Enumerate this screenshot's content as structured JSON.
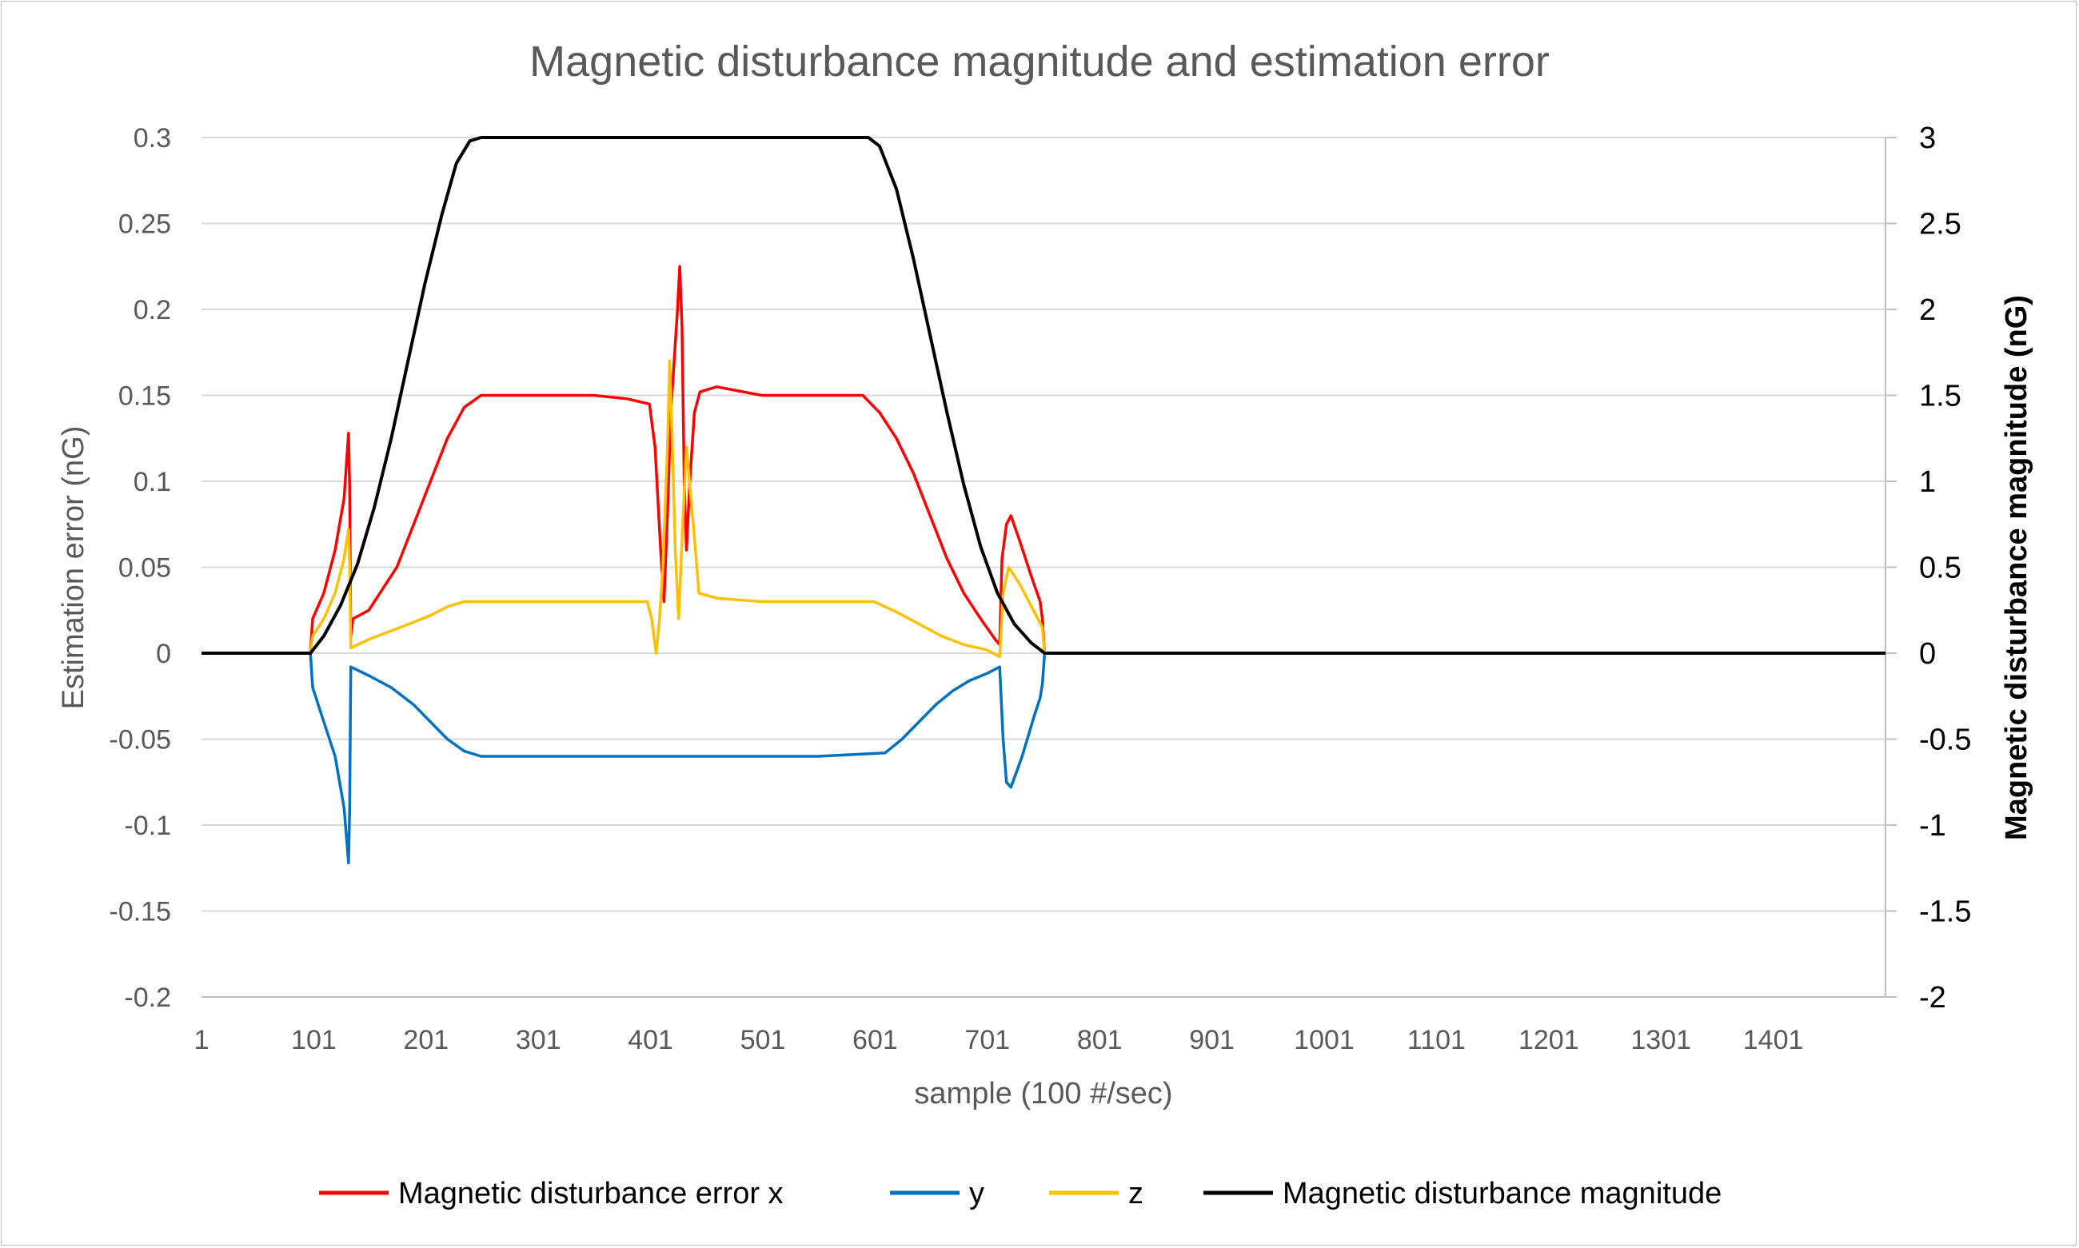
{
  "chart_data": {
    "type": "line",
    "title": "Magnetic disturbance magnitude and estimation error",
    "xlabel": "sample (100 #/sec)",
    "ylabel": "Estimation error (nG)",
    "y2label": "Magnetic disturbance magnitude (nG)",
    "xlim": [
      1,
      1501
    ],
    "ylim": [
      -0.2,
      0.3
    ],
    "y2lim": [
      -2,
      3
    ],
    "x_ticks": [
      "1",
      "101",
      "201",
      "301",
      "401",
      "501",
      "601",
      "701",
      "801",
      "901",
      "1001",
      "1101",
      "1201",
      "1301",
      "1401"
    ],
    "x_tick_values": [
      1,
      101,
      201,
      301,
      401,
      501,
      601,
      701,
      801,
      901,
      1001,
      1101,
      1201,
      1301,
      1401
    ],
    "y_ticks": [
      "0.3",
      "0.25",
      "0.2",
      "0.15",
      "0.1",
      "0.05",
      "0",
      "-0.05",
      "-0.1",
      "-0.15",
      "-0.2"
    ],
    "y_tick_values": [
      0.3,
      0.25,
      0.2,
      0.15,
      0.1,
      0.05,
      0,
      -0.05,
      -0.1,
      -0.15,
      -0.2
    ],
    "y2_ticks": [
      "3",
      "2.5",
      "2",
      "1.5",
      "1",
      "0.5",
      "0",
      "-0.5",
      "-1",
      "-1.5",
      "-2"
    ],
    "y2_tick_values": [
      3,
      2.5,
      2,
      1.5,
      1,
      0.5,
      0,
      -0.5,
      -1,
      -1.5,
      -2
    ],
    "grid": true,
    "legend_position": "bottom",
    "series": [
      {
        "name": "Magnetic disturbance error x",
        "color": "#ff0000",
        "axis": "left",
        "points": [
          [
            1,
            0
          ],
          [
            98,
            0
          ],
          [
            100,
            0.02
          ],
          [
            110,
            0.035
          ],
          [
            120,
            0.06
          ],
          [
            128,
            0.09
          ],
          [
            132,
            0.128
          ],
          [
            133,
            0.095
          ],
          [
            134,
            0.01
          ],
          [
            136,
            0.02
          ],
          [
            150,
            0.025
          ],
          [
            160,
            0.035
          ],
          [
            175,
            0.05
          ],
          [
            190,
            0.075
          ],
          [
            205,
            0.1
          ],
          [
            220,
            0.125
          ],
          [
            235,
            0.143
          ],
          [
            250,
            0.15
          ],
          [
            300,
            0.15
          ],
          [
            350,
            0.15
          ],
          [
            380,
            0.148
          ],
          [
            400,
            0.145
          ],
          [
            405,
            0.12
          ],
          [
            410,
            0.06
          ],
          [
            413,
            0.03
          ],
          [
            416,
            0.08
          ],
          [
            419,
            0.14
          ],
          [
            422,
            0.17
          ],
          [
            425,
            0.2
          ],
          [
            427,
            0.225
          ],
          [
            429,
            0.19
          ],
          [
            431,
            0.1
          ],
          [
            433,
            0.06
          ],
          [
            436,
            0.1
          ],
          [
            440,
            0.14
          ],
          [
            445,
            0.152
          ],
          [
            460,
            0.155
          ],
          [
            500,
            0.15
          ],
          [
            550,
            0.15
          ],
          [
            590,
            0.15
          ],
          [
            605,
            0.14
          ],
          [
            620,
            0.125
          ],
          [
            635,
            0.105
          ],
          [
            650,
            0.08
          ],
          [
            665,
            0.055
          ],
          [
            680,
            0.035
          ],
          [
            695,
            0.02
          ],
          [
            708,
            0.008
          ],
          [
            712,
            0.005
          ],
          [
            714,
            0.055
          ],
          [
            718,
            0.075
          ],
          [
            722,
            0.08
          ],
          [
            730,
            0.065
          ],
          [
            740,
            0.045
          ],
          [
            748,
            0.03
          ],
          [
            750,
            0.02
          ],
          [
            752,
            0
          ],
          [
            1501,
            0
          ]
        ]
      },
      {
        "name": "y",
        "color": "#0070c0",
        "axis": "left",
        "points": [
          [
            1,
            0
          ],
          [
            98,
            0
          ],
          [
            100,
            -0.02
          ],
          [
            110,
            -0.04
          ],
          [
            120,
            -0.06
          ],
          [
            128,
            -0.09
          ],
          [
            132,
            -0.122
          ],
          [
            133,
            -0.09
          ],
          [
            134,
            -0.008
          ],
          [
            150,
            -0.013
          ],
          [
            170,
            -0.02
          ],
          [
            190,
            -0.03
          ],
          [
            205,
            -0.04
          ],
          [
            220,
            -0.05
          ],
          [
            235,
            -0.057
          ],
          [
            250,
            -0.06
          ],
          [
            350,
            -0.06
          ],
          [
            450,
            -0.06
          ],
          [
            550,
            -0.06
          ],
          [
            610,
            -0.058
          ],
          [
            625,
            -0.05
          ],
          [
            640,
            -0.04
          ],
          [
            655,
            -0.03
          ],
          [
            670,
            -0.022
          ],
          [
            685,
            -0.016
          ],
          [
            700,
            -0.012
          ],
          [
            712,
            -0.008
          ],
          [
            715,
            -0.05
          ],
          [
            718,
            -0.075
          ],
          [
            722,
            -0.078
          ],
          [
            732,
            -0.06
          ],
          [
            742,
            -0.038
          ],
          [
            748,
            -0.026
          ],
          [
            750,
            -0.018
          ],
          [
            752,
            0
          ],
          [
            1501,
            0
          ]
        ]
      },
      {
        "name": "z",
        "color": "#ffc000",
        "axis": "left",
        "points": [
          [
            1,
            0
          ],
          [
            98,
            0
          ],
          [
            100,
            0.01
          ],
          [
            110,
            0.02
          ],
          [
            120,
            0.035
          ],
          [
            128,
            0.055
          ],
          [
            132,
            0.072
          ],
          [
            133,
            0.05
          ],
          [
            134,
            0.003
          ],
          [
            150,
            0.008
          ],
          [
            170,
            0.013
          ],
          [
            190,
            0.018
          ],
          [
            205,
            0.022
          ],
          [
            220,
            0.027
          ],
          [
            235,
            0.03
          ],
          [
            300,
            0.03
          ],
          [
            350,
            0.03
          ],
          [
            398,
            0.03
          ],
          [
            402,
            0.02
          ],
          [
            406,
            0.0
          ],
          [
            409,
            0.02
          ],
          [
            412,
            0.05
          ],
          [
            416,
            0.12
          ],
          [
            418,
            0.17
          ],
          [
            420,
            0.13
          ],
          [
            423,
            0.06
          ],
          [
            426,
            0.02
          ],
          [
            430,
            0.08
          ],
          [
            433,
            0.12
          ],
          [
            437,
            0.09
          ],
          [
            441,
            0.06
          ],
          [
            444,
            0.035
          ],
          [
            460,
            0.032
          ],
          [
            500,
            0.03
          ],
          [
            550,
            0.03
          ],
          [
            600,
            0.03
          ],
          [
            620,
            0.024
          ],
          [
            640,
            0.017
          ],
          [
            660,
            0.01
          ],
          [
            680,
            0.005
          ],
          [
            700,
            0.002
          ],
          [
            712,
            -0.002
          ],
          [
            715,
            0.035
          ],
          [
            720,
            0.05
          ],
          [
            730,
            0.04
          ],
          [
            742,
            0.025
          ],
          [
            750,
            0.015
          ],
          [
            752,
            0
          ],
          [
            1501,
            0
          ]
        ]
      },
      {
        "name": "Magnetic disturbance magnitude",
        "color": "#000000",
        "axis": "right",
        "points": [
          [
            1,
            0
          ],
          [
            98,
            0
          ],
          [
            110,
            0.1
          ],
          [
            125,
            0.28
          ],
          [
            140,
            0.52
          ],
          [
            155,
            0.85
          ],
          [
            170,
            1.25
          ],
          [
            185,
            1.7
          ],
          [
            200,
            2.15
          ],
          [
            215,
            2.55
          ],
          [
            228,
            2.85
          ],
          [
            240,
            2.98
          ],
          [
            250,
            3
          ],
          [
            400,
            3
          ],
          [
            595,
            3
          ],
          [
            605,
            2.95
          ],
          [
            620,
            2.7
          ],
          [
            635,
            2.3
          ],
          [
            650,
            1.85
          ],
          [
            665,
            1.4
          ],
          [
            680,
            0.98
          ],
          [
            695,
            0.62
          ],
          [
            710,
            0.35
          ],
          [
            725,
            0.17
          ],
          [
            740,
            0.06
          ],
          [
            752,
            0
          ],
          [
            1501,
            0
          ]
        ]
      }
    ]
  }
}
